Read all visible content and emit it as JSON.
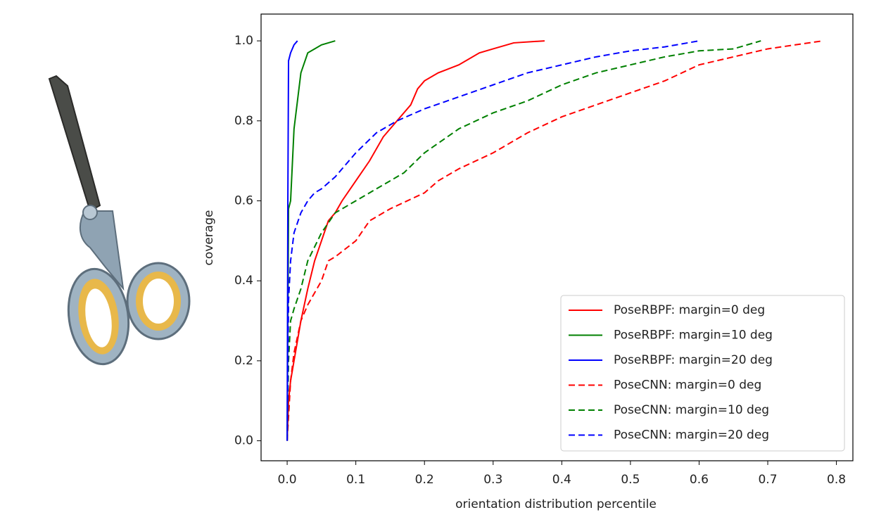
{
  "chart_data": {
    "type": "line",
    "xlabel": "orientation distribution percentile",
    "ylabel": "coverage",
    "xlim": [
      -0.038,
      0.824
    ],
    "ylim": [
      -0.05,
      1.067
    ],
    "xticks": [
      {
        "value": 0,
        "label": "0.0"
      },
      0.1,
      0.2,
      0.3,
      0.4,
      0.5,
      0.6,
      0.7,
      0.8
    ],
    "yticks": [
      {
        "value": 0,
        "label": "0.0"
      },
      0.2,
      0.4,
      0.6,
      0.8,
      {
        "value": 1,
        "label": "1.0"
      }
    ],
    "legend": "lower right",
    "series": [
      {
        "name": "PoseRBPF: margin=0 deg",
        "color": "#ff0000",
        "linestyle": "solid",
        "x": [
          0,
          0.002,
          0.005,
          0.01,
          0.015,
          0.02,
          0.03,
          0.04,
          0.05,
          0.06,
          0.07,
          0.08,
          0.1,
          0.12,
          0.14,
          0.16,
          0.18,
          0.19,
          0.2,
          0.22,
          0.25,
          0.28,
          0.3,
          0.33,
          0.375
        ],
        "values": [
          0,
          0.1,
          0.15,
          0.2,
          0.25,
          0.3,
          0.38,
          0.45,
          0.5,
          0.55,
          0.57,
          0.6,
          0.65,
          0.7,
          0.76,
          0.8,
          0.84,
          0.88,
          0.9,
          0.92,
          0.94,
          0.97,
          0.98,
          0.995,
          1.0
        ]
      },
      {
        "name": "PoseRBPF: margin=10 deg",
        "color": "#008000",
        "linestyle": "solid",
        "x": [
          0,
          0.002,
          0.005,
          0.01,
          0.015,
          0.02,
          0.03,
          0.04,
          0.05,
          0.07
        ],
        "values": [
          0,
          0.58,
          0.6,
          0.78,
          0.85,
          0.92,
          0.97,
          0.98,
          0.99,
          1.0
        ]
      },
      {
        "name": "PoseRBPF: margin=20 deg",
        "color": "#0000ff",
        "linestyle": "solid",
        "x": [
          0,
          0.001,
          0.002,
          0.005,
          0.01,
          0.015
        ],
        "values": [
          0,
          0.6,
          0.95,
          0.97,
          0.99,
          1.0
        ]
      },
      {
        "name": "PoseCNN: margin=0 deg",
        "color": "#ff0000",
        "linestyle": "dashed",
        "x": [
          0,
          0.005,
          0.01,
          0.02,
          0.03,
          0.04,
          0.05,
          0.06,
          0.07,
          0.1,
          0.12,
          0.15,
          0.2,
          0.22,
          0.25,
          0.3,
          0.35,
          0.4,
          0.45,
          0.5,
          0.55,
          0.6,
          0.65,
          0.7,
          0.78
        ],
        "values": [
          0,
          0.15,
          0.22,
          0.3,
          0.34,
          0.37,
          0.4,
          0.45,
          0.46,
          0.5,
          0.55,
          0.58,
          0.62,
          0.65,
          0.68,
          0.72,
          0.77,
          0.81,
          0.84,
          0.87,
          0.9,
          0.94,
          0.96,
          0.98,
          1.0
        ]
      },
      {
        "name": "PoseCNN: margin=10 deg",
        "color": "#008000",
        "linestyle": "dashed",
        "x": [
          0,
          0.002,
          0.005,
          0.01,
          0.02,
          0.03,
          0.05,
          0.07,
          0.1,
          0.13,
          0.17,
          0.2,
          0.25,
          0.3,
          0.35,
          0.4,
          0.45,
          0.5,
          0.55,
          0.6,
          0.65,
          0.69
        ],
        "values": [
          0,
          0.2,
          0.3,
          0.33,
          0.38,
          0.45,
          0.52,
          0.57,
          0.6,
          0.63,
          0.67,
          0.72,
          0.78,
          0.82,
          0.85,
          0.89,
          0.92,
          0.94,
          0.96,
          0.975,
          0.98,
          1.0
        ]
      },
      {
        "name": "PoseCNN: margin=20 deg",
        "color": "#0000ff",
        "linestyle": "dashed",
        "x": [
          0,
          0.002,
          0.005,
          0.01,
          0.02,
          0.03,
          0.04,
          0.05,
          0.07,
          0.1,
          0.13,
          0.16,
          0.2,
          0.25,
          0.3,
          0.35,
          0.4,
          0.45,
          0.5,
          0.55,
          0.6
        ],
        "values": [
          0,
          0.35,
          0.45,
          0.52,
          0.57,
          0.6,
          0.62,
          0.63,
          0.66,
          0.72,
          0.77,
          0.8,
          0.83,
          0.86,
          0.89,
          0.92,
          0.94,
          0.96,
          0.975,
          0.985,
          1.0
        ]
      }
    ]
  }
}
